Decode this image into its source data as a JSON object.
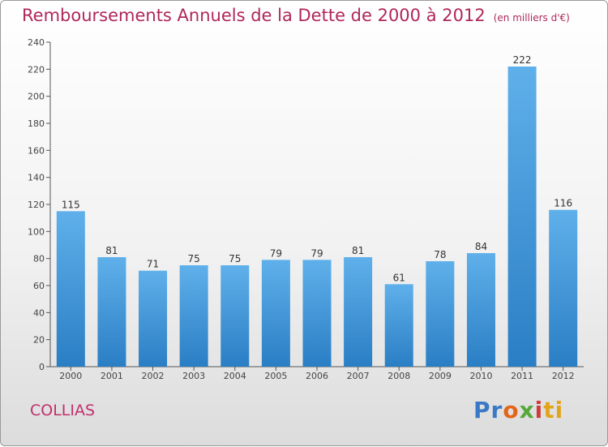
{
  "title": "Remboursements Annuels de la Dette de 2000 à 2012",
  "unit": "(en milliers d'€)",
  "commune": "COLLIAS",
  "logo": [
    "Pr",
    "o",
    "x",
    "i",
    "ti"
  ],
  "colors": {
    "bar": "#3d95d8",
    "title": "#b0275a",
    "axis": "#444444"
  },
  "chart_data": {
    "type": "bar",
    "categories": [
      "2000",
      "2001",
      "2002",
      "2003",
      "2004",
      "2005",
      "2006",
      "2007",
      "2008",
      "2009",
      "2010",
      "2011",
      "2012"
    ],
    "values": [
      115,
      81,
      71,
      75,
      75,
      79,
      79,
      81,
      61,
      78,
      84,
      222,
      116
    ],
    "ylim": [
      0,
      240
    ],
    "yticks": [
      0,
      20,
      40,
      60,
      80,
      100,
      120,
      140,
      160,
      180,
      200,
      220,
      240
    ],
    "grid": false,
    "legend": "none"
  }
}
